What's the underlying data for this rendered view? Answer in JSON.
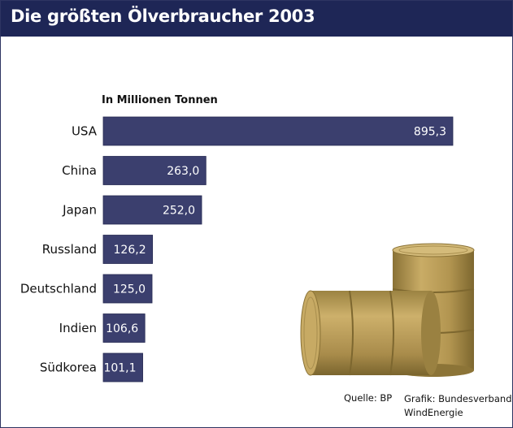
{
  "header": {
    "title": "Die größten Ölverbraucher 2003"
  },
  "chart_data": {
    "type": "bar",
    "orientation": "horizontal",
    "title": "Die größten Ölverbraucher 2003",
    "subtitle": "In Millionen Tonnen",
    "categories": [
      "USA",
      "China",
      "Japan",
      "Russland",
      "Deutschland",
      "Indien",
      "Südkorea"
    ],
    "values": [
      895.3,
      263.0,
      252.0,
      126.2,
      125.0,
      106.6,
      101.1
    ],
    "value_labels": [
      "895,3",
      "263,0",
      "252,0",
      "126,2",
      "125,0",
      "106,6",
      "101,1"
    ],
    "xlim": [
      0,
      895.3
    ],
    "grid": false,
    "legend": "none",
    "bar_color": "#3b3f6e"
  },
  "footer": {
    "source": "Quelle: BP",
    "credit_line1": "Grafik: Bundesverband",
    "credit_line2": "WindEnergie"
  },
  "colors": {
    "header_bg": "#1e2656",
    "bar": "#3b3f6e",
    "barrel": "#b79a55"
  }
}
